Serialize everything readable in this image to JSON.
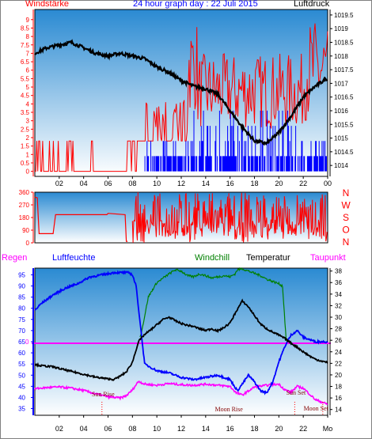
{
  "title": "24 hour graph day : 22 Juli 2015",
  "colors": {
    "red": "#ff0000",
    "blue": "#0000ff",
    "green": "#008000",
    "magenta": "#ff00ff",
    "black": "#000000",
    "dark_red": "#800000",
    "panel_top": "#2a8ad2",
    "panel_bottom": "#ffffff"
  },
  "chart_data": [
    {
      "type": "line",
      "name": "wind-and-pressure",
      "left_label": "Windstärke",
      "right_label": "Luftdruck",
      "x_ticks": [
        "02",
        "04",
        "06",
        "08",
        "10",
        "12",
        "14",
        "16",
        "18",
        "20",
        "22",
        "00"
      ],
      "left_axis": {
        "ylim": [
          -0.3,
          9.6
        ],
        "ticks": [
          "0",
          "0.5",
          "1",
          "1.5",
          "2",
          "2.5",
          "3",
          "3.5",
          "4",
          "4.5",
          "5",
          "5.5",
          "6",
          "6.5",
          "7",
          "7.5",
          "8",
          "8.5",
          "9"
        ]
      },
      "right_axis": {
        "ylim": [
          1013.6,
          1019.7
        ],
        "ticks": [
          "1014",
          "1014.5",
          "1015",
          "1015.5",
          "1016",
          "1016.5",
          "1017",
          "1017.5",
          "1018",
          "1018.5",
          "1019",
          "1019.5"
        ]
      },
      "series": [
        {
          "name": "Luftdruck",
          "axis": "right",
          "x": [
            0,
            1,
            2,
            3,
            4,
            5,
            6,
            7,
            8,
            9,
            10,
            11,
            12,
            13,
            14,
            15,
            16,
            17,
            18,
            19,
            20,
            21,
            22,
            23,
            24
          ],
          "y": [
            1018.1,
            1018.3,
            1018.4,
            1018.5,
            1018.3,
            1018.1,
            1018.0,
            1018.1,
            1018.0,
            1017.9,
            1017.6,
            1017.4,
            1017.1,
            1016.9,
            1016.8,
            1016.6,
            1016.0,
            1015.4,
            1014.9,
            1014.8,
            1015.2,
            1015.8,
            1016.5,
            1016.9,
            1017.2
          ]
        }
      ]
    },
    {
      "type": "line",
      "name": "wind-direction",
      "left_axis": {
        "ylim": [
          0,
          360
        ],
        "ticks": [
          "0",
          "90",
          "180",
          "270",
          "360"
        ]
      },
      "right_labels": [
        "N",
        "W",
        "S",
        "O",
        "N"
      ],
      "x": [
        0,
        0.2,
        0.35,
        1.5,
        1.7,
        5.9,
        6.0,
        7.4,
        7.5,
        7.6
      ],
      "y": [
        325,
        320,
        65,
        65,
        200,
        200,
        210,
        200,
        10,
        10
      ]
    },
    {
      "type": "line",
      "name": "temperature-humidity",
      "legend": [
        "Regen",
        "Luftfeuchte",
        "Windchill",
        "Temperatur",
        "Taupunkt"
      ],
      "left_axis": {
        "ylim": [
          32,
          98
        ],
        "ticks": [
          "35",
          "40",
          "45",
          "50",
          "55",
          "60",
          "65",
          "70",
          "75",
          "80",
          "85",
          "90",
          "95"
        ]
      },
      "right_axis": {
        "ylim": [
          13,
          38.5
        ],
        "ticks": [
          "14",
          "16",
          "18",
          "20",
          "22",
          "24",
          "26",
          "28",
          "30",
          "32",
          "34",
          "36",
          "38"
        ]
      },
      "rain_label": "0",
      "x_ticks": [
        "02",
        "04",
        "06",
        "08",
        "10",
        "12",
        "14",
        "16",
        "18",
        "20",
        "22",
        "Mo"
      ],
      "series": [
        {
          "name": "Luftfeuchte",
          "axis": "left",
          "x": [
            0,
            0.5,
            1.5,
            2.5,
            3.5,
            4.5,
            5.5,
            6.5,
            7.2,
            7.7,
            8.0,
            8.3,
            8.6,
            9,
            10,
            11,
            12,
            13,
            14,
            15,
            16,
            16.6,
            17,
            17.5,
            18,
            18.5,
            19,
            19.5,
            20,
            20.5,
            21,
            21.5,
            22,
            22.5,
            23,
            23.5,
            24
          ],
          "y": [
            79,
            82,
            86,
            89,
            91,
            94,
            95,
            96,
            96,
            96,
            95,
            90,
            75,
            55,
            52,
            51,
            49,
            48,
            49,
            50,
            48,
            43,
            46,
            50,
            47,
            43,
            42,
            47,
            56,
            63,
            68,
            70,
            67,
            66,
            65,
            65,
            65
          ]
        },
        {
          "name": "Temperatur",
          "axis": "right",
          "x": [
            0,
            0.5,
            1,
            1.5,
            2,
            3,
            4,
            5,
            6,
            6.5,
            7,
            7.5,
            8,
            8.5,
            9,
            9.5,
            10,
            10.5,
            11,
            11.5,
            12,
            12.5,
            13,
            13.5,
            14,
            14.5,
            15,
            15.5,
            16,
            16.5,
            17,
            17.5,
            18,
            18.5,
            19,
            19.5,
            20,
            20.5,
            21,
            21.5,
            22,
            22.5,
            23,
            23.5,
            24
          ],
          "y": [
            21.8,
            21.6,
            21.5,
            21.4,
            21.1,
            20.6,
            20.1,
            19.6,
            19.3,
            19.2,
            19.8,
            20.5,
            22.2,
            25.8,
            27.0,
            27.8,
            28.7,
            29.6,
            30.0,
            29.4,
            28.9,
            28.6,
            28.4,
            28.0,
            27.7,
            28.0,
            27.6,
            28.2,
            29.0,
            31.0,
            32.8,
            31.8,
            30.3,
            28.8,
            28.0,
            27.4,
            26.9,
            26.3,
            25.5,
            24.8,
            24.0,
            23.3,
            22.7,
            22.4,
            22.1
          ]
        },
        {
          "name": "Windchill",
          "axis": "right",
          "x": [
            8.6,
            8.8,
            9.3,
            10,
            11,
            11.5,
            12,
            12.5,
            13,
            13.5,
            14,
            14.5,
            15,
            15.5,
            16,
            16.4,
            16.6,
            17,
            17.5,
            18,
            18.5,
            19,
            19.5,
            20,
            20.3,
            20.6
          ],
          "y": [
            26.5,
            28.0,
            33.5,
            36.0,
            37.5,
            38.2,
            38.0,
            37.2,
            37.0,
            37.5,
            37.2,
            36.8,
            37.0,
            37.2,
            37.0,
            37.5,
            38.2,
            38.4,
            38.0,
            37.6,
            37.2,
            36.6,
            36.2,
            35.8,
            35.4,
            26.0
          ]
        },
        {
          "name": "Taupunkt",
          "axis": "right",
          "x": [
            0,
            1,
            2,
            3,
            4,
            5,
            6,
            7,
            7.5,
            8,
            8.5,
            9,
            10,
            11,
            12,
            13,
            14,
            15,
            16,
            16.5,
            17,
            17.5,
            18,
            19,
            20,
            20.5,
            21,
            21.5,
            22,
            23,
            24
          ],
          "y": [
            17.6,
            17.8,
            17.9,
            17.7,
            17.3,
            16.7,
            16.2,
            16.0,
            16.4,
            17.4,
            18.9,
            18.4,
            18.2,
            18.5,
            18.3,
            18.2,
            18.4,
            18.2,
            18.0,
            16.9,
            16.5,
            17.2,
            17.9,
            18.2,
            18.4,
            17.4,
            17.0,
            18.0,
            17.7,
            15.7,
            14.9
          ]
        }
      ],
      "annotations": [
        {
          "text": "Sun Rise",
          "x": 5.6
        },
        {
          "text": "Moon Rise",
          "x": 15.9
        },
        {
          "text": "Sun Set",
          "x": 21.4
        },
        {
          "text": "Moon Set",
          "x": 23.8
        },
        {
          "text": "Mo",
          "x": 24
        }
      ]
    }
  ]
}
